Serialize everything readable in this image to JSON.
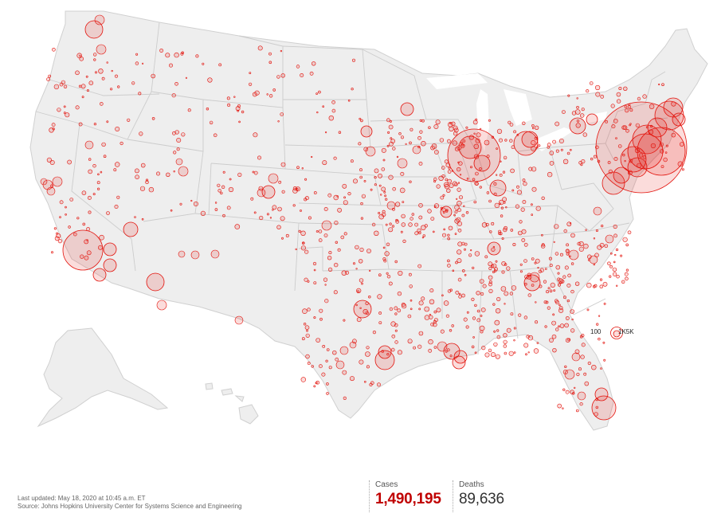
{
  "colors": {
    "bubble": "#e3120b",
    "land": "#eeeeee",
    "border": "#c8c8c8",
    "cases_text": "#c00000"
  },
  "legend": {
    "small_label": "100",
    "large_label": "1K5K"
  },
  "footer": {
    "last_updated": "Last updated: May 18, 2020 at 10:45 a.m. ET",
    "source": "Source: Johns Hopkins University Center for Systems Science and Engineering"
  },
  "stats": {
    "cases_label": "Cases",
    "cases_value": "1,490,195",
    "deaths_label": "Deaths",
    "deaths_value": "89,636"
  }
}
